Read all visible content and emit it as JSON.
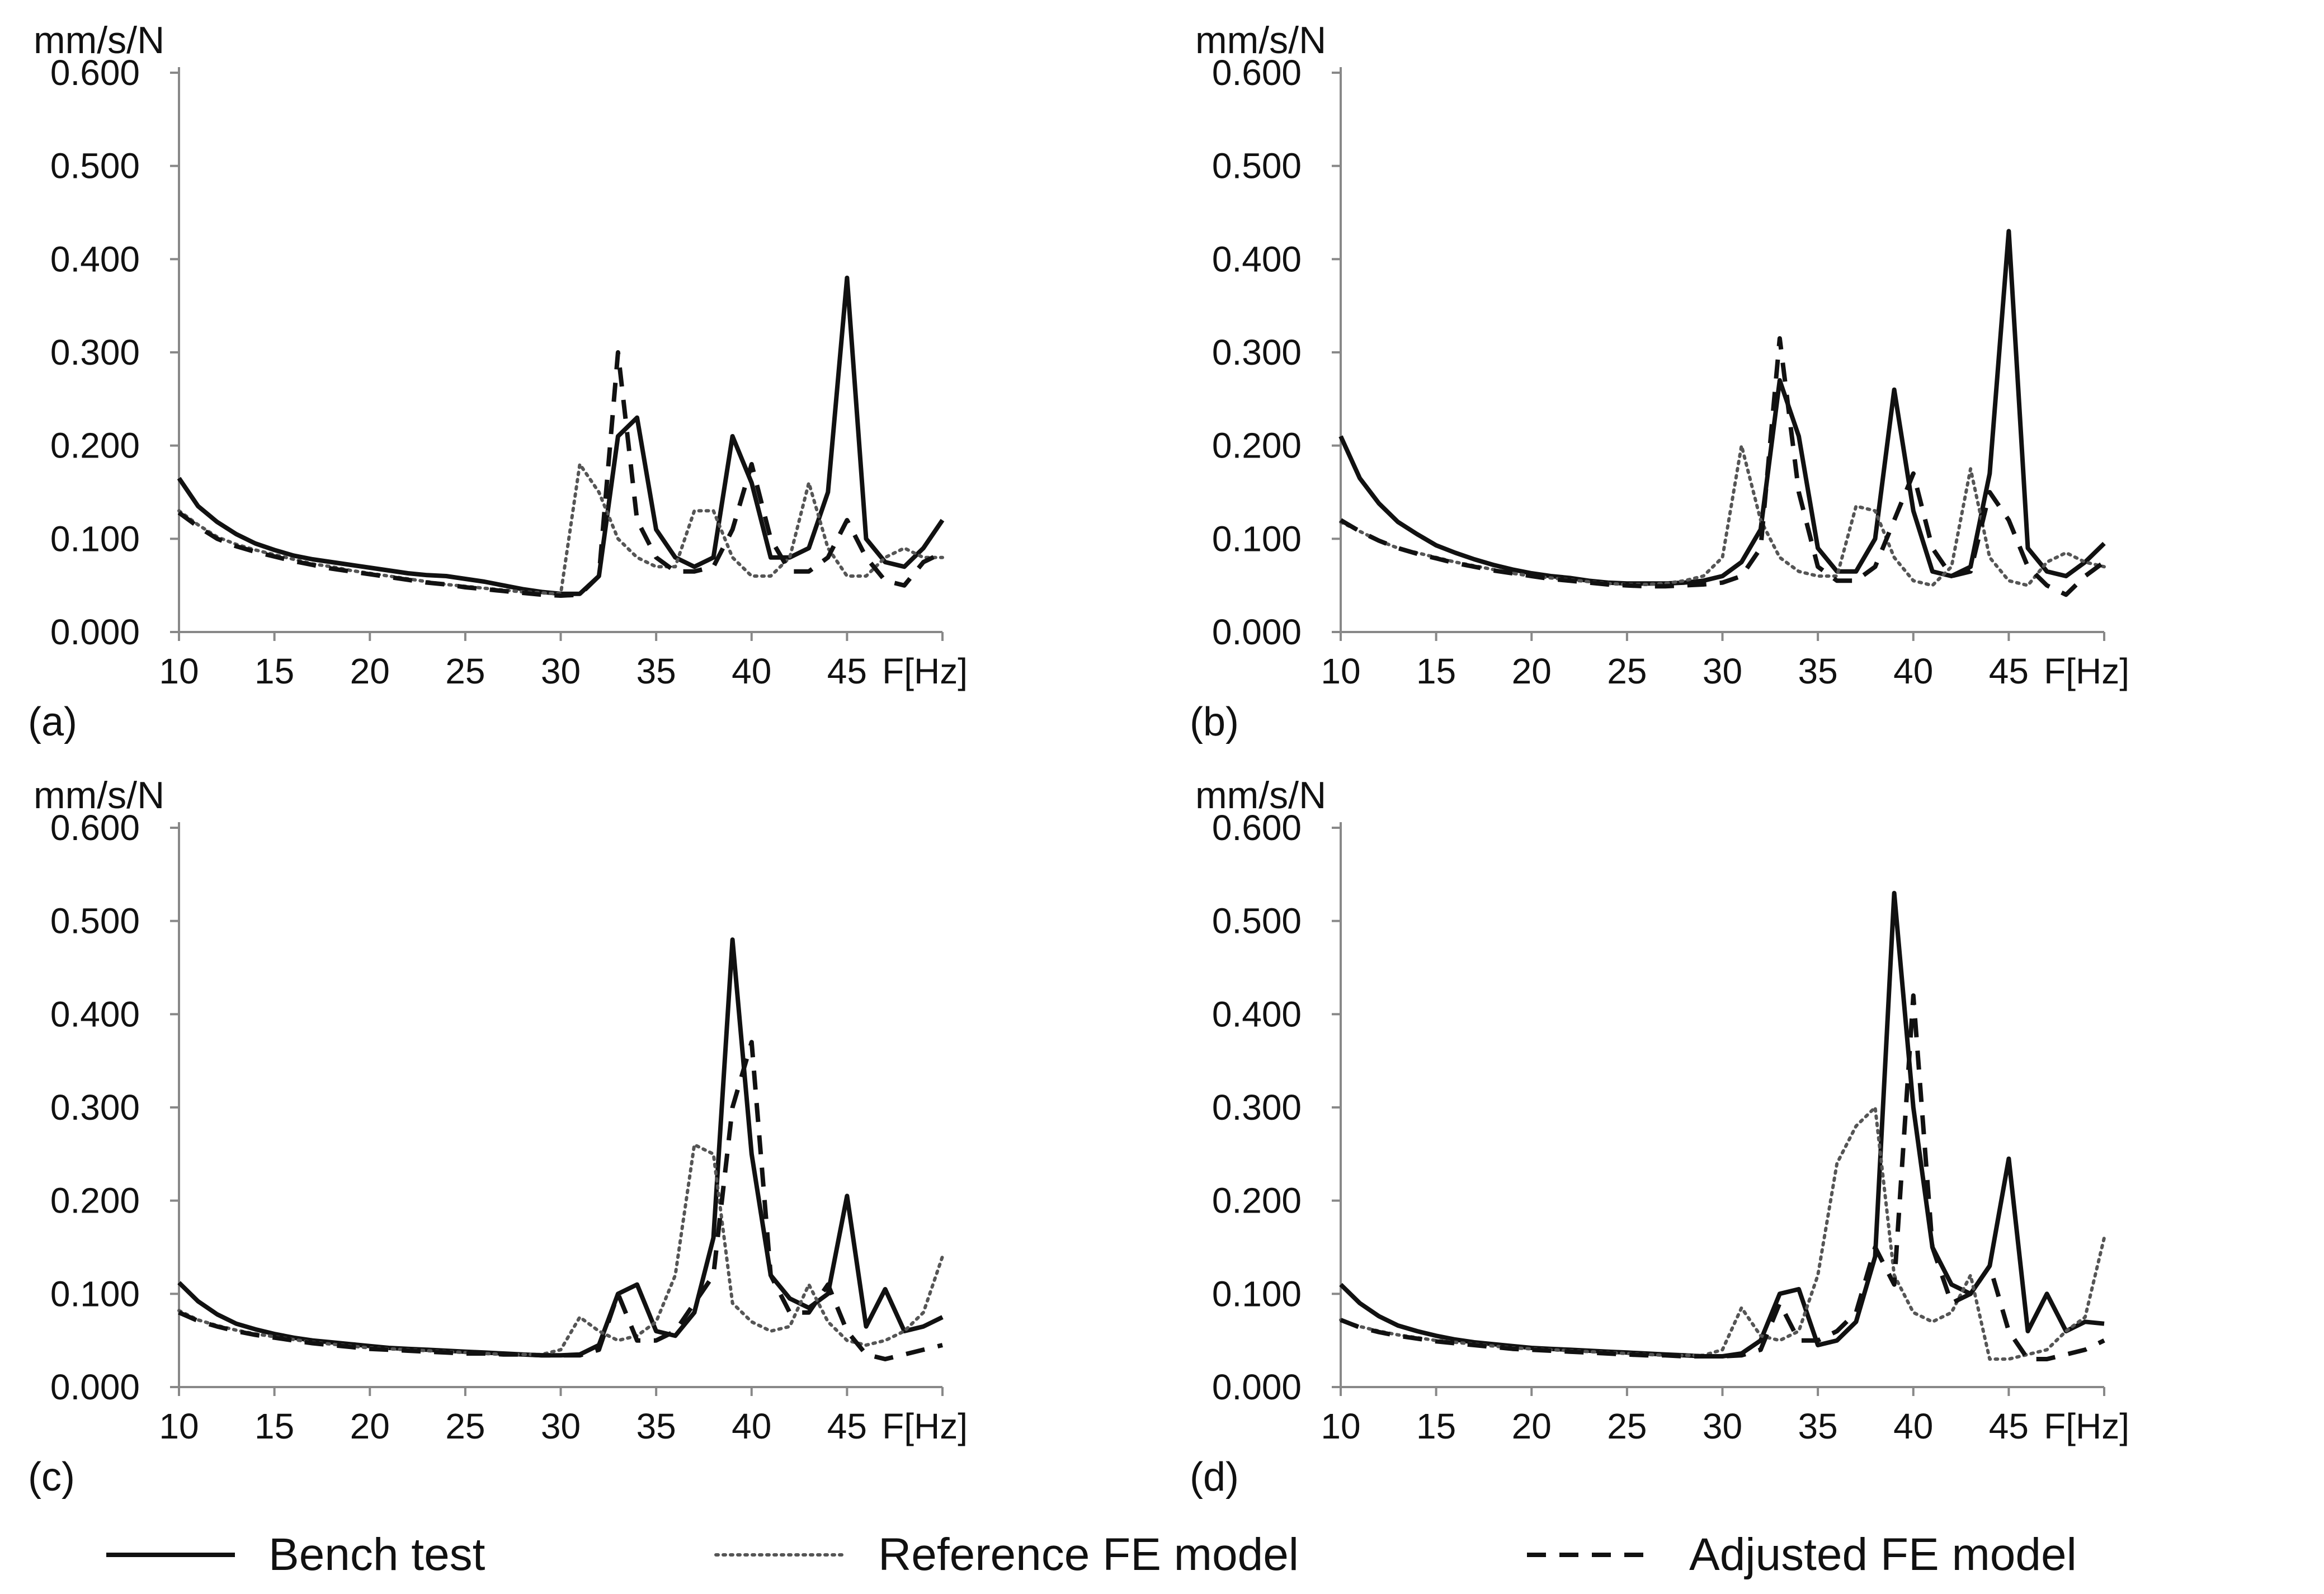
{
  "chart_data": [
    {
      "type": "line",
      "panel_label": "(a)",
      "ylabel": "mm/s/N",
      "xlabel": "F[Hz]",
      "xlim": [
        10,
        50
      ],
      "ylim": [
        0,
        0.6
      ],
      "x_ticks": [
        10,
        15,
        20,
        25,
        30,
        35,
        40,
        45
      ],
      "y_ticks": [
        "0.000",
        "0.100",
        "0.200",
        "0.300",
        "0.400",
        "0.500",
        "0.600"
      ],
      "x": [
        10,
        11,
        12,
        13,
        14,
        15,
        16,
        17,
        18,
        19,
        20,
        21,
        22,
        23,
        24,
        25,
        26,
        27,
        28,
        29,
        30,
        31,
        32,
        33,
        34,
        35,
        36,
        37,
        38,
        39,
        40,
        41,
        42,
        43,
        44,
        45,
        46,
        47,
        48,
        49,
        50
      ],
      "series": [
        {
          "name": "Bench test",
          "style": "solid",
          "values": [
            0.165,
            0.135,
            0.118,
            0.105,
            0.095,
            0.088,
            0.082,
            0.078,
            0.075,
            0.072,
            0.069,
            0.066,
            0.063,
            0.061,
            0.06,
            0.057,
            0.054,
            0.05,
            0.046,
            0.043,
            0.041,
            0.041,
            0.06,
            0.21,
            0.23,
            0.11,
            0.08,
            0.07,
            0.08,
            0.21,
            0.16,
            0.08,
            0.08,
            0.09,
            0.15,
            0.38,
            0.1,
            0.075,
            0.07,
            0.09,
            0.12
          ]
        },
        {
          "name": "Reference FE model",
          "style": "dotted",
          "values": [
            0.13,
            0.115,
            0.102,
            0.094,
            0.088,
            0.083,
            0.078,
            0.073,
            0.07,
            0.066,
            0.063,
            0.06,
            0.057,
            0.054,
            0.051,
            0.049,
            0.047,
            0.045,
            0.043,
            0.042,
            0.041,
            0.18,
            0.15,
            0.1,
            0.08,
            0.07,
            0.07,
            0.13,
            0.13,
            0.08,
            0.06,
            0.06,
            0.08,
            0.16,
            0.09,
            0.06,
            0.06,
            0.08,
            0.09,
            0.08,
            0.08
          ]
        },
        {
          "name": "Adjusted FE model",
          "style": "dashed",
          "values": [
            0.128,
            0.113,
            0.1,
            0.092,
            0.086,
            0.081,
            0.076,
            0.072,
            0.068,
            0.065,
            0.062,
            0.059,
            0.056,
            0.053,
            0.051,
            0.048,
            0.046,
            0.044,
            0.042,
            0.04,
            0.039,
            0.04,
            0.06,
            0.3,
            0.12,
            0.08,
            0.065,
            0.065,
            0.07,
            0.11,
            0.18,
            0.1,
            0.065,
            0.065,
            0.08,
            0.12,
            0.08,
            0.055,
            0.05,
            0.075,
            0.085
          ]
        }
      ]
    },
    {
      "type": "line",
      "panel_label": "(b)",
      "ylabel": "mm/s/N",
      "xlabel": "F[Hz]",
      "xlim": [
        10,
        50
      ],
      "ylim": [
        0,
        0.6
      ],
      "x_ticks": [
        10,
        15,
        20,
        25,
        30,
        35,
        40,
        45
      ],
      "y_ticks": [
        "0.000",
        "0.100",
        "0.200",
        "0.300",
        "0.400",
        "0.500",
        "0.600"
      ],
      "x": [
        10,
        11,
        12,
        13,
        14,
        15,
        16,
        17,
        18,
        19,
        20,
        21,
        22,
        23,
        24,
        25,
        26,
        27,
        28,
        29,
        30,
        31,
        32,
        33,
        34,
        35,
        36,
        37,
        38,
        39,
        40,
        41,
        42,
        43,
        44,
        45,
        46,
        47,
        48,
        49,
        50
      ],
      "series": [
        {
          "name": "Bench test",
          "style": "solid",
          "values": [
            0.21,
            0.165,
            0.138,
            0.118,
            0.105,
            0.093,
            0.085,
            0.078,
            0.072,
            0.067,
            0.063,
            0.06,
            0.058,
            0.055,
            0.053,
            0.052,
            0.052,
            0.052,
            0.053,
            0.055,
            0.06,
            0.075,
            0.11,
            0.27,
            0.21,
            0.09,
            0.065,
            0.065,
            0.1,
            0.26,
            0.13,
            0.065,
            0.06,
            0.07,
            0.17,
            0.43,
            0.09,
            0.065,
            0.06,
            0.075,
            0.095
          ]
        },
        {
          "name": "Reference FE model",
          "style": "dotted",
          "values": [
            0.118,
            0.108,
            0.098,
            0.09,
            0.085,
            0.08,
            0.075,
            0.071,
            0.067,
            0.063,
            0.06,
            0.058,
            0.056,
            0.054,
            0.052,
            0.051,
            0.051,
            0.052,
            0.055,
            0.06,
            0.08,
            0.2,
            0.12,
            0.08,
            0.065,
            0.06,
            0.06,
            0.135,
            0.13,
            0.08,
            0.055,
            0.05,
            0.07,
            0.175,
            0.08,
            0.055,
            0.05,
            0.075,
            0.085,
            0.075,
            0.07
          ]
        },
        {
          "name": "Adjusted FE model",
          "style": "dashed",
          "values": [
            0.12,
            0.108,
            0.098,
            0.09,
            0.084,
            0.079,
            0.074,
            0.07,
            0.066,
            0.063,
            0.06,
            0.057,
            0.055,
            0.053,
            0.051,
            0.05,
            0.049,
            0.049,
            0.05,
            0.051,
            0.053,
            0.06,
            0.09,
            0.315,
            0.15,
            0.07,
            0.055,
            0.055,
            0.07,
            0.12,
            0.17,
            0.09,
            0.06,
            0.065,
            0.15,
            0.12,
            0.07,
            0.05,
            0.04,
            0.06,
            0.075
          ]
        }
      ]
    },
    {
      "type": "line",
      "panel_label": "(c)",
      "ylabel": "mm/s/N",
      "xlabel": "F[Hz]",
      "xlim": [
        10,
        50
      ],
      "ylim": [
        0,
        0.6
      ],
      "x_ticks": [
        10,
        15,
        20,
        25,
        30,
        35,
        40,
        45
      ],
      "y_ticks": [
        "0.000",
        "0.100",
        "0.200",
        "0.300",
        "0.400",
        "0.500",
        "0.600"
      ],
      "x": [
        10,
        11,
        12,
        13,
        14,
        15,
        16,
        17,
        18,
        19,
        20,
        21,
        22,
        23,
        24,
        25,
        26,
        27,
        28,
        29,
        30,
        31,
        32,
        33,
        34,
        35,
        36,
        37,
        38,
        39,
        40,
        41,
        42,
        43,
        44,
        45,
        46,
        47,
        48,
        49,
        50
      ],
      "series": [
        {
          "name": "Bench test",
          "style": "solid",
          "values": [
            0.112,
            0.092,
            0.078,
            0.068,
            0.062,
            0.057,
            0.053,
            0.05,
            0.048,
            0.046,
            0.044,
            0.042,
            0.041,
            0.04,
            0.039,
            0.038,
            0.037,
            0.036,
            0.035,
            0.034,
            0.034,
            0.035,
            0.045,
            0.1,
            0.11,
            0.06,
            0.055,
            0.08,
            0.16,
            0.48,
            0.25,
            0.12,
            0.095,
            0.085,
            0.1,
            0.205,
            0.065,
            0.105,
            0.06,
            0.065,
            0.075
          ]
        },
        {
          "name": "Reference FE model",
          "style": "dotted",
          "values": [
            0.082,
            0.072,
            0.066,
            0.061,
            0.057,
            0.054,
            0.051,
            0.048,
            0.046,
            0.044,
            0.042,
            0.041,
            0.04,
            0.039,
            0.038,
            0.037,
            0.036,
            0.035,
            0.035,
            0.035,
            0.04,
            0.075,
            0.06,
            0.05,
            0.055,
            0.07,
            0.12,
            0.26,
            0.25,
            0.09,
            0.07,
            0.06,
            0.065,
            0.11,
            0.07,
            0.05,
            0.045,
            0.05,
            0.06,
            0.08,
            0.14
          ]
        },
        {
          "name": "Adjusted FE model",
          "style": "dashed",
          "values": [
            0.08,
            0.071,
            0.065,
            0.06,
            0.056,
            0.053,
            0.05,
            0.047,
            0.045,
            0.043,
            0.041,
            0.04,
            0.039,
            0.038,
            0.037,
            0.036,
            0.036,
            0.035,
            0.035,
            0.034,
            0.034,
            0.034,
            0.04,
            0.1,
            0.05,
            0.05,
            0.06,
            0.09,
            0.12,
            0.3,
            0.37,
            0.12,
            0.08,
            0.08,
            0.11,
            0.06,
            0.035,
            0.03,
            0.035,
            0.04,
            0.045
          ]
        }
      ]
    },
    {
      "type": "line",
      "panel_label": "(d)",
      "ylabel": "mm/s/N",
      "xlabel": "F[Hz]",
      "xlim": [
        10,
        50
      ],
      "ylim": [
        0,
        0.6
      ],
      "x_ticks": [
        10,
        15,
        20,
        25,
        30,
        35,
        40,
        45
      ],
      "y_ticks": [
        "0.000",
        "0.100",
        "0.200",
        "0.300",
        "0.400",
        "0.500",
        "0.600"
      ],
      "x": [
        10,
        11,
        12,
        13,
        14,
        15,
        16,
        17,
        18,
        19,
        20,
        21,
        22,
        23,
        24,
        25,
        26,
        27,
        28,
        29,
        30,
        31,
        32,
        33,
        34,
        35,
        36,
        37,
        38,
        39,
        40,
        41,
        42,
        43,
        44,
        45,
        46,
        47,
        48,
        49,
        50
      ],
      "series": [
        {
          "name": "Bench test",
          "style": "solid",
          "values": [
            0.11,
            0.09,
            0.076,
            0.066,
            0.06,
            0.055,
            0.051,
            0.048,
            0.046,
            0.044,
            0.042,
            0.041,
            0.04,
            0.039,
            0.038,
            0.037,
            0.036,
            0.035,
            0.034,
            0.033,
            0.033,
            0.036,
            0.05,
            0.1,
            0.105,
            0.045,
            0.05,
            0.07,
            0.14,
            0.53,
            0.3,
            0.15,
            0.11,
            0.1,
            0.13,
            0.245,
            0.06,
            0.1,
            0.06,
            0.07,
            0.068
          ]
        },
        {
          "name": "Reference FE model",
          "style": "dotted",
          "values": [
            0.072,
            0.065,
            0.06,
            0.056,
            0.053,
            0.05,
            0.048,
            0.046,
            0.044,
            0.042,
            0.041,
            0.04,
            0.039,
            0.038,
            0.037,
            0.036,
            0.035,
            0.034,
            0.034,
            0.034,
            0.04,
            0.085,
            0.055,
            0.05,
            0.06,
            0.12,
            0.24,
            0.28,
            0.3,
            0.12,
            0.08,
            0.07,
            0.08,
            0.12,
            0.03,
            0.03,
            0.035,
            0.04,
            0.06,
            0.075,
            0.16
          ]
        },
        {
          "name": "Adjusted FE model",
          "style": "dashed",
          "values": [
            0.072,
            0.064,
            0.059,
            0.055,
            0.052,
            0.049,
            0.047,
            0.045,
            0.043,
            0.041,
            0.04,
            0.039,
            0.038,
            0.037,
            0.036,
            0.035,
            0.034,
            0.034,
            0.033,
            0.033,
            0.033,
            0.034,
            0.04,
            0.09,
            0.05,
            0.05,
            0.06,
            0.08,
            0.15,
            0.11,
            0.42,
            0.15,
            0.09,
            0.1,
            0.13,
            0.06,
            0.03,
            0.03,
            0.035,
            0.04,
            0.05
          ]
        }
      ]
    }
  ],
  "legend": [
    {
      "label": "Bench test",
      "style": "solid"
    },
    {
      "label": "Reference FE model",
      "style": "dotted"
    },
    {
      "label": "Adjusted FE model",
      "style": "dashed"
    }
  ]
}
